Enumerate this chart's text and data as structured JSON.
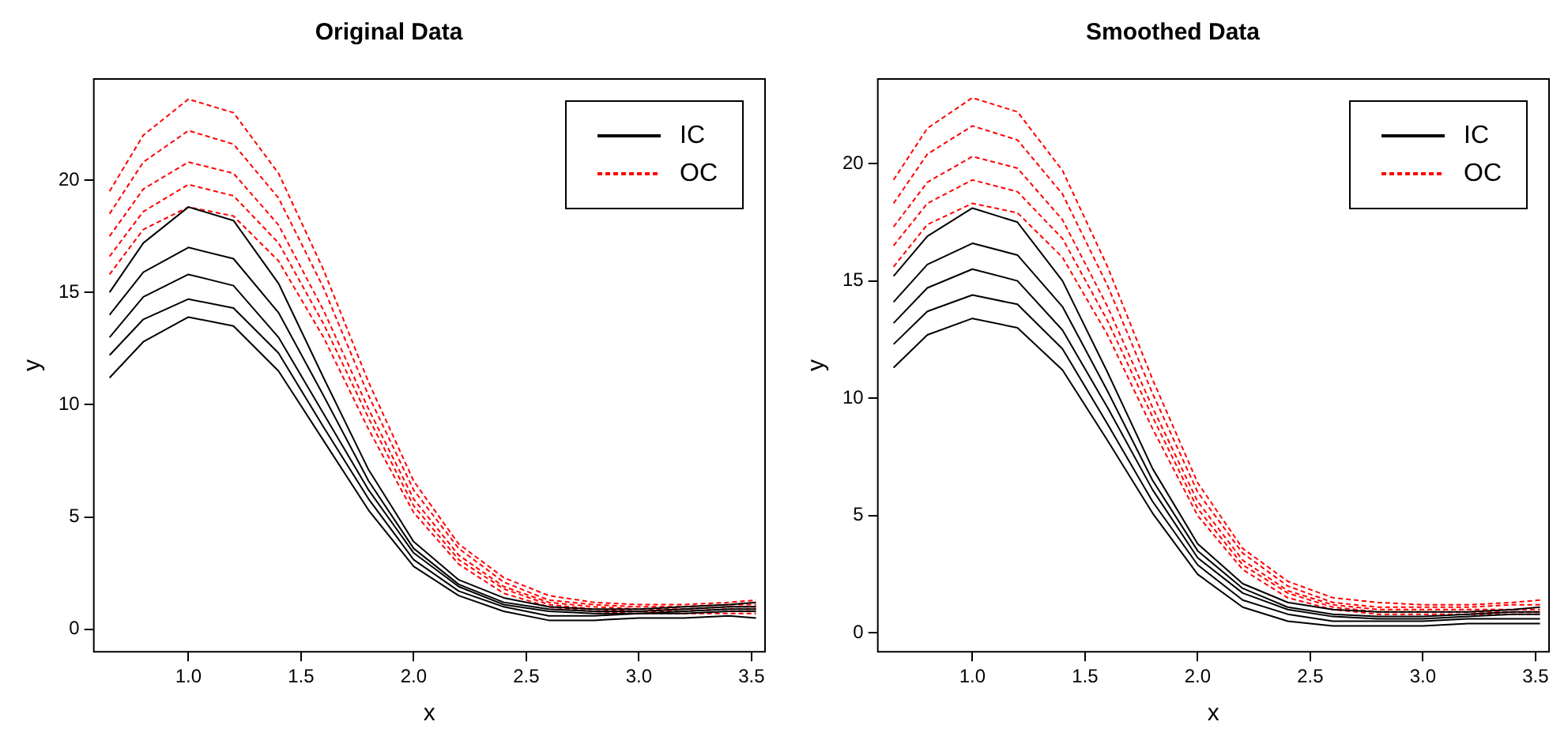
{
  "chart_data": [
    {
      "type": "line",
      "title": "Original Data",
      "xlabel": "x",
      "ylabel": "y",
      "x": [
        0.65,
        0.8,
        1.0,
        1.2,
        1.4,
        1.6,
        1.8,
        2.0,
        2.2,
        2.4,
        2.6,
        2.8,
        3.0,
        3.2,
        3.4,
        3.52
      ],
      "xlim": [
        0.58,
        3.56
      ],
      "xticks": [
        {
          "value": 1.0,
          "label": "1.0"
        },
        {
          "value": 1.5,
          "label": "1.5"
        },
        {
          "value": 2.0,
          "label": "2.0"
        },
        {
          "value": 2.5,
          "label": "2.5"
        },
        {
          "value": 3.0,
          "label": "3.0"
        },
        {
          "value": 3.5,
          "label": "3.5"
        }
      ],
      "ylim": [
        -1,
        24.5
      ],
      "yticks": [
        0,
        5,
        10,
        15,
        20
      ],
      "grid": false,
      "legend": "top right",
      "series": [
        {
          "name": "IC",
          "color": "#000000",
          "line_style": "solid",
          "values": [
            13.0,
            14.8,
            15.8,
            15.3,
            13.0,
            9.6,
            6.2,
            3.4,
            1.9,
            1.1,
            0.8,
            0.7,
            0.7,
            0.8,
            0.9,
            0.9
          ]
        },
        {
          "color": "#000000",
          "line_style": "solid",
          "values": [
            11.2,
            12.8,
            13.9,
            13.5,
            11.5,
            8.4,
            5.3,
            2.8,
            1.5,
            0.8,
            0.4,
            0.4,
            0.5,
            0.5,
            0.6,
            0.5
          ]
        },
        {
          "color": "#000000",
          "line_style": "solid",
          "values": [
            15.0,
            17.2,
            18.8,
            18.2,
            15.4,
            11.2,
            7.1,
            3.9,
            2.2,
            1.4,
            1.0,
            0.9,
            0.9,
            1.0,
            1.1,
            1.2
          ]
        },
        {
          "color": "#000000",
          "line_style": "solid",
          "values": [
            12.2,
            13.8,
            14.7,
            14.3,
            12.3,
            9.0,
            5.8,
            3.1,
            1.7,
            1.0,
            0.6,
            0.6,
            0.7,
            0.7,
            0.8,
            0.8
          ]
        },
        {
          "color": "#000000",
          "line_style": "solid",
          "values": [
            14.0,
            15.9,
            17.0,
            16.5,
            14.1,
            10.4,
            6.6,
            3.6,
            2.0,
            1.2,
            0.9,
            0.8,
            0.8,
            0.9,
            1.0,
            1.0
          ]
        },
        {
          "name": "OC",
          "color": "#ff0000",
          "line_style": "dashed",
          "values": [
            17.5,
            19.6,
            20.8,
            20.3,
            18.0,
            14.2,
            9.8,
            5.8,
            3.3,
            1.9,
            1.2,
            1.0,
            0.9,
            0.9,
            1.0,
            1.0
          ]
        },
        {
          "color": "#ff0000",
          "line_style": "dashed",
          "values": [
            15.8,
            17.8,
            18.8,
            18.4,
            16.4,
            13.0,
            8.9,
            5.2,
            2.9,
            1.6,
            1.0,
            0.8,
            0.7,
            0.7,
            0.7,
            0.7
          ]
        },
        {
          "color": "#ff0000",
          "line_style": "dashed",
          "values": [
            19.5,
            22.0,
            23.6,
            23.0,
            20.3,
            16.0,
            11.0,
            6.6,
            3.8,
            2.3,
            1.5,
            1.2,
            1.1,
            1.1,
            1.2,
            1.3
          ]
        },
        {
          "color": "#ff0000",
          "line_style": "dashed",
          "values": [
            16.6,
            18.6,
            19.8,
            19.3,
            17.2,
            13.6,
            9.4,
            5.5,
            3.1,
            1.8,
            1.1,
            0.9,
            0.8,
            0.8,
            0.9,
            0.9
          ]
        },
        {
          "color": "#ff0000",
          "line_style": "dashed",
          "values": [
            18.5,
            20.8,
            22.2,
            21.6,
            19.2,
            15.2,
            10.4,
            6.2,
            3.6,
            2.1,
            1.3,
            1.1,
            1.0,
            1.0,
            1.1,
            1.1
          ]
        }
      ]
    },
    {
      "type": "line",
      "title": "Smoothed Data",
      "xlabel": "x",
      "ylabel": "y",
      "x": [
        0.65,
        0.8,
        1.0,
        1.2,
        1.4,
        1.6,
        1.8,
        2.0,
        2.2,
        2.4,
        2.6,
        2.8,
        3.0,
        3.2,
        3.4,
        3.52
      ],
      "xlim": [
        0.58,
        3.56
      ],
      "xticks": [
        {
          "value": 1.0,
          "label": "1.0"
        },
        {
          "value": 1.5,
          "label": "1.5"
        },
        {
          "value": 2.0,
          "label": "2.0"
        },
        {
          "value": 2.5,
          "label": "2.5"
        },
        {
          "value": 3.0,
          "label": "3.0"
        },
        {
          "value": 3.5,
          "label": "3.5"
        }
      ],
      "ylim": [
        -0.8,
        23.6
      ],
      "yticks": [
        0,
        5,
        10,
        15,
        20
      ],
      "grid": false,
      "legend": "top right",
      "series": [
        {
          "name": "IC",
          "color": "#000000",
          "line_style": "solid",
          "values": [
            13.2,
            14.7,
            15.5,
            15.0,
            12.9,
            9.6,
            6.1,
            3.2,
            1.7,
            1.0,
            0.7,
            0.6,
            0.6,
            0.7,
            0.8,
            0.8
          ]
        },
        {
          "color": "#000000",
          "line_style": "solid",
          "values": [
            11.3,
            12.7,
            13.4,
            13.0,
            11.2,
            8.2,
            5.1,
            2.5,
            1.1,
            0.5,
            0.3,
            0.3,
            0.3,
            0.4,
            0.4,
            0.4
          ]
        },
        {
          "color": "#000000",
          "line_style": "solid",
          "values": [
            15.2,
            16.9,
            18.1,
            17.5,
            15.0,
            11.1,
            7.0,
            3.8,
            2.1,
            1.3,
            1.0,
            0.9,
            0.9,
            0.9,
            1.0,
            1.1
          ]
        },
        {
          "color": "#000000",
          "line_style": "solid",
          "values": [
            12.3,
            13.7,
            14.4,
            14.0,
            12.1,
            8.9,
            5.6,
            2.9,
            1.4,
            0.8,
            0.5,
            0.5,
            0.5,
            0.6,
            0.6,
            0.6
          ]
        },
        {
          "color": "#000000",
          "line_style": "solid",
          "values": [
            14.1,
            15.7,
            16.6,
            16.1,
            13.9,
            10.3,
            6.5,
            3.5,
            1.9,
            1.1,
            0.8,
            0.7,
            0.7,
            0.8,
            0.9,
            0.9
          ]
        },
        {
          "name": "OC",
          "color": "#ff0000",
          "line_style": "dashed",
          "values": [
            17.3,
            19.2,
            20.3,
            19.8,
            17.6,
            13.9,
            9.6,
            5.6,
            3.1,
            1.8,
            1.2,
            1.0,
            1.0,
            1.0,
            1.0,
            1.0
          ]
        },
        {
          "color": "#ff0000",
          "line_style": "dashed",
          "values": [
            15.6,
            17.4,
            18.3,
            17.9,
            16.0,
            12.7,
            8.7,
            5.0,
            2.7,
            1.5,
            1.0,
            0.8,
            0.8,
            0.8,
            0.8,
            0.8
          ]
        },
        {
          "color": "#ff0000",
          "line_style": "dashed",
          "values": [
            19.3,
            21.5,
            22.8,
            22.2,
            19.7,
            15.6,
            10.8,
            6.4,
            3.6,
            2.2,
            1.5,
            1.3,
            1.2,
            1.2,
            1.3,
            1.4
          ]
        },
        {
          "color": "#ff0000",
          "line_style": "dashed",
          "values": [
            16.5,
            18.3,
            19.3,
            18.8,
            16.8,
            13.3,
            9.2,
            5.3,
            2.9,
            1.7,
            1.1,
            0.9,
            0.9,
            0.9,
            0.9,
            0.9
          ]
        },
        {
          "color": "#ff0000",
          "line_style": "dashed",
          "values": [
            18.3,
            20.4,
            21.6,
            21.0,
            18.7,
            14.8,
            10.2,
            6.0,
            3.4,
            2.0,
            1.3,
            1.1,
            1.1,
            1.1,
            1.2,
            1.2
          ]
        }
      ]
    }
  ]
}
